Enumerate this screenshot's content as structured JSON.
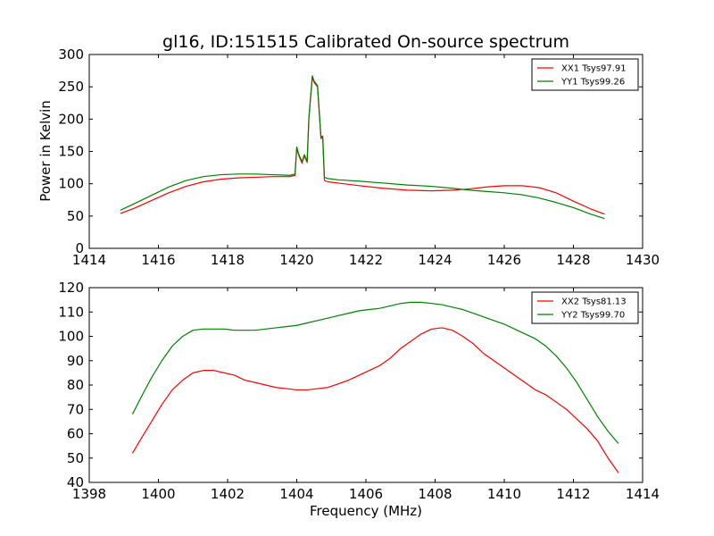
{
  "figure": {
    "title": "gl16, ID:151515 Calibrated On-source spectrum"
  },
  "chart_data": [
    {
      "type": "line",
      "title": "gl16, ID:151515 Calibrated On-source spectrum",
      "xlabel": "",
      "ylabel": "Power in Kelvin",
      "xlim": [
        1414,
        1430
      ],
      "ylim": [
        0,
        300
      ],
      "xticks": [
        1414,
        1416,
        1418,
        1420,
        1422,
        1424,
        1426,
        1428,
        1430
      ],
      "yticks": [
        0,
        50,
        100,
        150,
        200,
        250,
        300
      ],
      "legend": "top-right",
      "grid": false,
      "series": [
        {
          "name": "XX1 Tsys97.91",
          "color": "#ff0000",
          "x": [
            1414.9,
            1415.3,
            1415.8,
            1416.3,
            1416.8,
            1417.3,
            1417.8,
            1418.3,
            1418.8,
            1419.3,
            1419.8,
            1419.95,
            1420.0,
            1420.05,
            1420.15,
            1420.22,
            1420.3,
            1420.35,
            1420.45,
            1420.5,
            1420.6,
            1420.65,
            1420.7,
            1420.75,
            1420.8,
            1420.9,
            1421.2,
            1421.8,
            1422.5,
            1423.2,
            1423.9,
            1424.5,
            1425.0,
            1425.5,
            1426.0,
            1426.5,
            1427.0,
            1427.5,
            1428.0,
            1428.5,
            1428.9
          ],
          "y": [
            54,
            62,
            74,
            86,
            96,
            103,
            107,
            109,
            110,
            111,
            111,
            113,
            155,
            145,
            132,
            143,
            133,
            200,
            265,
            257,
            250,
            210,
            170,
            172,
            105,
            103,
            101,
            97,
            93,
            90,
            89,
            90,
            92,
            95,
            97,
            97,
            94,
            86,
            73,
            61,
            53
          ]
        },
        {
          "name": "YY1 Tsys99.26",
          "color": "#008000",
          "x": [
            1414.9,
            1415.3,
            1415.8,
            1416.3,
            1416.8,
            1417.3,
            1417.8,
            1418.3,
            1418.8,
            1419.3,
            1419.8,
            1419.95,
            1420.0,
            1420.05,
            1420.15,
            1420.22,
            1420.3,
            1420.35,
            1420.45,
            1420.5,
            1420.6,
            1420.65,
            1420.7,
            1420.75,
            1420.8,
            1420.9,
            1421.2,
            1421.8,
            1422.5,
            1423.2,
            1423.9,
            1424.5,
            1425.0,
            1425.5,
            1426.0,
            1426.5,
            1427.0,
            1427.5,
            1428.0,
            1428.5,
            1428.9
          ],
          "y": [
            59,
            69,
            82,
            95,
            105,
            111,
            114,
            115,
            115,
            114,
            113,
            115,
            157,
            147,
            134,
            145,
            134,
            202,
            267,
            259,
            252,
            212,
            172,
            174,
            110,
            108,
            106,
            104,
            101,
            98,
            96,
            93,
            90,
            88,
            86,
            83,
            78,
            71,
            63,
            53,
            46
          ]
        }
      ]
    },
    {
      "type": "line",
      "title": "",
      "xlabel": "Frequency (MHz)",
      "ylabel": "",
      "xlim": [
        1398,
        1414
      ],
      "ylim": [
        40,
        120
      ],
      "xticks": [
        1398,
        1400,
        1402,
        1404,
        1406,
        1408,
        1410,
        1412,
        1414
      ],
      "yticks": [
        40,
        50,
        60,
        70,
        80,
        90,
        100,
        110,
        120
      ],
      "legend": "top-right",
      "grid": false,
      "series": [
        {
          "name": "XX2 Tsys81.13",
          "color": "#ff0000",
          "x": [
            1399.25,
            1399.5,
            1399.8,
            1400.1,
            1400.4,
            1400.7,
            1401.0,
            1401.3,
            1401.6,
            1401.9,
            1402.2,
            1402.5,
            1402.8,
            1403.1,
            1403.4,
            1403.7,
            1404.0,
            1404.3,
            1404.6,
            1404.9,
            1405.2,
            1405.5,
            1405.8,
            1406.1,
            1406.4,
            1406.7,
            1407.0,
            1407.3,
            1407.6,
            1407.9,
            1408.2,
            1408.5,
            1408.8,
            1409.1,
            1409.4,
            1409.7,
            1410.0,
            1410.3,
            1410.6,
            1410.9,
            1411.2,
            1411.5,
            1411.8,
            1412.1,
            1412.4,
            1412.7,
            1413.0,
            1413.3
          ],
          "y": [
            52,
            58,
            65,
            72,
            78,
            82,
            85,
            86,
            86,
            85,
            84,
            82,
            81,
            80,
            79,
            78.5,
            78,
            78,
            78.5,
            79,
            80.5,
            82,
            84,
            86,
            88,
            91,
            95,
            98,
            101,
            103,
            103.5,
            102.5,
            100,
            97,
            93,
            90,
            87,
            84,
            81,
            78,
            76,
            73,
            70,
            66,
            62,
            57,
            50,
            44
          ]
        },
        {
          "name": "YY2 Tsys99.70",
          "color": "#008000",
          "x": [
            1399.25,
            1399.5,
            1399.8,
            1400.1,
            1400.4,
            1400.7,
            1401.0,
            1401.3,
            1401.6,
            1401.9,
            1402.2,
            1402.5,
            1402.8,
            1403.1,
            1403.4,
            1403.7,
            1404.0,
            1404.3,
            1404.6,
            1404.9,
            1405.2,
            1405.5,
            1405.8,
            1406.1,
            1406.4,
            1406.7,
            1407.0,
            1407.3,
            1407.6,
            1407.9,
            1408.2,
            1408.5,
            1408.8,
            1409.1,
            1409.4,
            1409.7,
            1410.0,
            1410.3,
            1410.6,
            1410.9,
            1411.2,
            1411.5,
            1411.8,
            1412.1,
            1412.4,
            1412.7,
            1413.0,
            1413.3
          ],
          "y": [
            68,
            75,
            83,
            90,
            96,
            100,
            102.5,
            103,
            103,
            103,
            102.5,
            102.5,
            102.5,
            103,
            103.5,
            104,
            104.5,
            105.5,
            106.5,
            107.5,
            108.5,
            109.5,
            110.5,
            111,
            111.5,
            112.5,
            113.5,
            114,
            114,
            113.5,
            113,
            112,
            111,
            109.5,
            108,
            106.5,
            105,
            103,
            101,
            99,
            96,
            92,
            87,
            81,
            74,
            67,
            61,
            56
          ]
        }
      ]
    }
  ]
}
